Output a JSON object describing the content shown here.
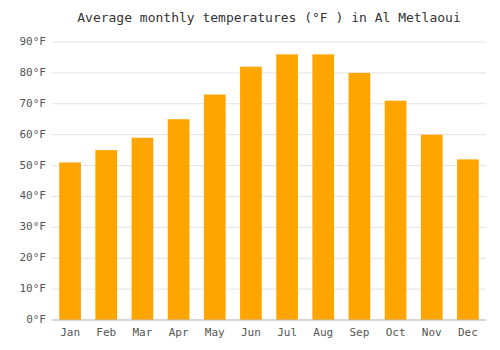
{
  "chart_data": {
    "type": "bar",
    "title": "Average monthly temperatures (°F ) in Al Metlaoui",
    "categories": [
      "Jan",
      "Feb",
      "Mar",
      "Apr",
      "May",
      "Jun",
      "Jul",
      "Aug",
      "Sep",
      "Oct",
      "Nov",
      "Dec"
    ],
    "values": [
      51,
      55,
      59,
      65,
      73,
      82,
      86,
      86,
      80,
      71,
      60,
      52
    ],
    "color": "#FFA500",
    "ylim": [
      0,
      90
    ],
    "yticks": [
      {
        "value": 0,
        "label": "0°F"
      },
      {
        "value": 10,
        "label": "10°F"
      },
      {
        "value": 20,
        "label": "20°F"
      },
      {
        "value": 30,
        "label": "30°F"
      },
      {
        "value": 40,
        "label": "40°F"
      },
      {
        "value": 50,
        "label": "50°F"
      },
      {
        "value": 60,
        "label": "60°F"
      },
      {
        "value": 70,
        "label": "70°F"
      },
      {
        "value": 80,
        "label": "80°F"
      },
      {
        "value": 90,
        "label": "90°F"
      }
    ],
    "grid": true
  }
}
